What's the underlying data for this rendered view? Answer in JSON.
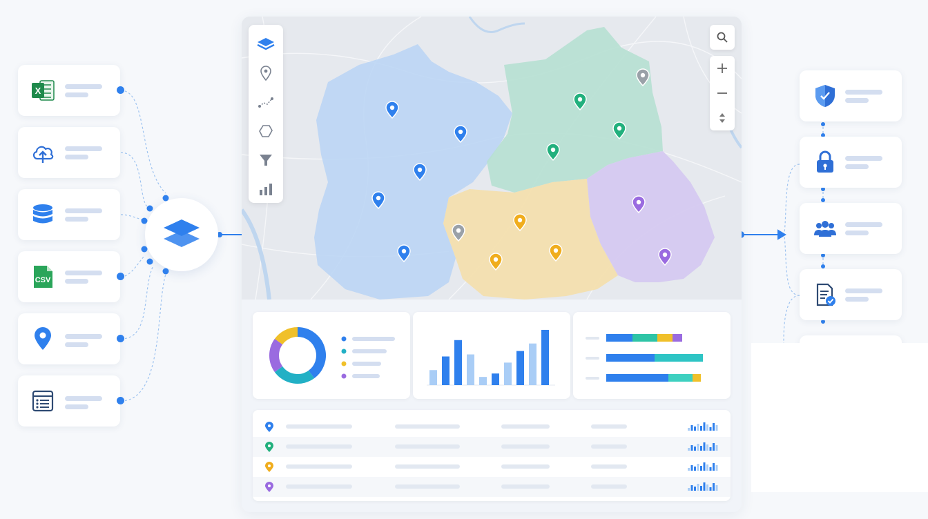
{
  "sources": [
    {
      "icon": "excel-icon",
      "label": "X"
    },
    {
      "icon": "cloud-upload-icon"
    },
    {
      "icon": "database-icon"
    },
    {
      "icon": "csv-file-icon",
      "label": "CSV"
    },
    {
      "icon": "location-pin-icon"
    },
    {
      "icon": "form-list-icon"
    }
  ],
  "hub": {
    "icon": "layers-icon"
  },
  "toolbar": {
    "tools": [
      "layers-icon",
      "pin-icon",
      "route-icon",
      "polygon-icon",
      "filter-icon",
      "bar-chart-icon"
    ]
  },
  "map_controls": [
    "search-icon",
    "zoom-in-icon",
    "zoom-out-icon",
    "compass-icon"
  ],
  "regions": [
    {
      "name": "blue",
      "color": "#b8d4f5"
    },
    {
      "name": "green",
      "color": "#b6e0d2"
    },
    {
      "name": "yellow",
      "color": "#f3dfae"
    },
    {
      "name": "purple",
      "color": "#d5c9f0"
    }
  ],
  "colors": {
    "accent": "#2f80ed",
    "blue": "#2f80ed",
    "green": "#22b07d",
    "yellow": "#f0ad1d",
    "purple": "#9a6be0",
    "gray": "#9aa1a8"
  },
  "donut": {
    "slices": [
      {
        "color": "#2f80ed",
        "value": 40
      },
      {
        "color": "#22b0c5",
        "value": 25
      },
      {
        "color": "#9a6be0",
        "value": 20
      },
      {
        "color": "#f0c02a",
        "value": 15
      }
    ]
  },
  "bar_chart": {
    "values": [
      22,
      42,
      66,
      45,
      12,
      17,
      33,
      50,
      61,
      81
    ]
  },
  "stacked_bars": {
    "rows": [
      [
        {
          "color": "#2f80ed",
          "value": 38
        },
        {
          "color": "#2ec4a6",
          "value": 36
        },
        {
          "color": "#f0c02a",
          "value": 22
        },
        {
          "color": "#9a6be0",
          "value": 14
        }
      ],
      [
        {
          "color": "#2f80ed",
          "value": 70
        },
        {
          "color": "#2ec4c4",
          "value": 70
        }
      ],
      [
        {
          "color": "#2f80ed",
          "value": 90
        },
        {
          "color": "#3ed0c0",
          "value": 35
        },
        {
          "color": "#f0c02a",
          "value": 12
        }
      ]
    ]
  },
  "table": {
    "rows": [
      {
        "pin": "#2f80ed"
      },
      {
        "pin": "#22b07d"
      },
      {
        "pin": "#f0ad1d"
      },
      {
        "pin": "#9a6be0"
      }
    ]
  },
  "governance": [
    {
      "icon": "shield-icon"
    },
    {
      "icon": "lock-icon"
    },
    {
      "icon": "users-icon"
    },
    {
      "icon": "document-check-icon"
    }
  ]
}
